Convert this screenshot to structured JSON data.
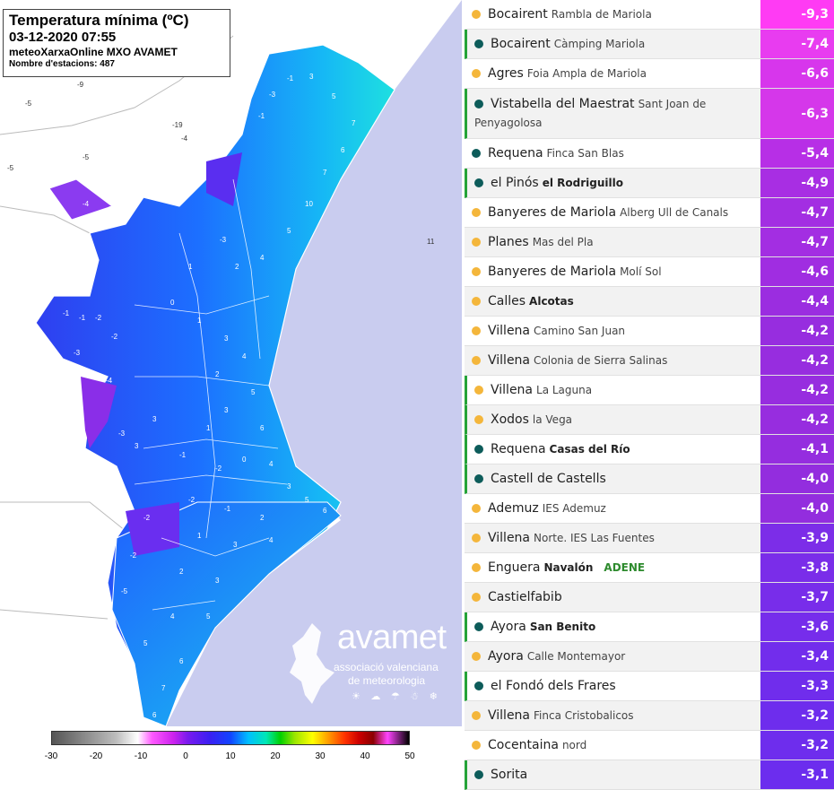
{
  "map": {
    "title": "Temperatura mínima (ºC)",
    "datetime": "03-12-2020 07:55",
    "source": "meteoXarxaOnline MXO AVAMET",
    "stations": "Nombre d'estacions: 487"
  },
  "logo": {
    "brand": "avamet",
    "line1": "associació valenciana",
    "line2": "de meteorologia",
    "weather_icons": "☀ ☁ ☂ ☃ ❄"
  },
  "scale": {
    "ticks": [
      "-30",
      "-20",
      "-10",
      "0",
      "10",
      "20",
      "30",
      "40",
      "50"
    ]
  },
  "stations": [
    {
      "town": "Bocairent",
      "site": "Rambla de Mariola",
      "site_bold": false,
      "value": "-9,3",
      "dot": "yellow",
      "mark": false,
      "color": "#ff3bf4"
    },
    {
      "town": "Bocairent",
      "site": "Càmping Mariola",
      "site_bold": false,
      "value": "-7,4",
      "dot": "teal",
      "mark": true,
      "color": "#e83cf0"
    },
    {
      "town": "Agres",
      "site": "Foia Ampla de Mariola",
      "site_bold": false,
      "value": "-6,6",
      "dot": "yellow",
      "mark": false,
      "color": "#d736ec"
    },
    {
      "town": "Vistabella del Maestrat",
      "site": "Sant Joan de Penyagolosa",
      "site_bold": false,
      "value": "-6,3",
      "dot": "teal",
      "mark": true,
      "color": "#d537ea"
    },
    {
      "town": "Requena",
      "site": "Finca San Blas",
      "site_bold": false,
      "value": "-5,4",
      "dot": "teal",
      "mark": false,
      "color": "#b72fe6"
    },
    {
      "town": "el Pinós",
      "site": "el Rodriguillo",
      "site_bold": true,
      "value": "-4,9",
      "dot": "teal",
      "mark": true,
      "color": "#a82ee3"
    },
    {
      "town": "Banyeres de Mariola",
      "site": "Alberg Ull de Canals",
      "site_bold": false,
      "value": "-4,7",
      "dot": "yellow",
      "mark": false,
      "color": "#a32ee2"
    },
    {
      "town": "Planes",
      "site": "Mas del Pla",
      "site_bold": false,
      "value": "-4,7",
      "dot": "yellow",
      "mark": false,
      "color": "#a32ee2"
    },
    {
      "town": "Banyeres de Mariola",
      "site": "Molí Sol",
      "site_bold": false,
      "value": "-4,6",
      "dot": "yellow",
      "mark": false,
      "color": "#a02de1"
    },
    {
      "town": "Calles",
      "site": "Alcotas",
      "site_bold": true,
      "value": "-4,4",
      "dot": "yellow",
      "mark": false,
      "color": "#9b2de0"
    },
    {
      "town": "Villena",
      "site": "Camino San Juan",
      "site_bold": false,
      "value": "-4,2",
      "dot": "yellow",
      "mark": false,
      "color": "#972ddf"
    },
    {
      "town": "Villena",
      "site": "Colonia de Sierra Salinas",
      "site_bold": false,
      "value": "-4,2",
      "dot": "yellow",
      "mark": false,
      "color": "#972ddf"
    },
    {
      "town": "Villena",
      "site": "La Laguna",
      "site_bold": false,
      "value": "-4,2",
      "dot": "yellow",
      "mark": true,
      "color": "#972ddf"
    },
    {
      "town": "Xodos",
      "site": "la Vega",
      "site_bold": false,
      "value": "-4,2",
      "dot": "yellow",
      "mark": true,
      "color": "#972ddf"
    },
    {
      "town": "Requena",
      "site": "Casas del Río",
      "site_bold": true,
      "value": "-4,1",
      "dot": "teal",
      "mark": true,
      "color": "#952ddf"
    },
    {
      "town": "Castell de Castells",
      "site": "",
      "site_bold": false,
      "value": "-4,0",
      "dot": "teal",
      "mark": true,
      "color": "#932dde"
    },
    {
      "town": "Ademuz",
      "site": "IES Ademuz",
      "site_bold": false,
      "value": "-4,0",
      "dot": "yellow",
      "mark": false,
      "color": "#932dde"
    },
    {
      "town": "Villena",
      "site": "Norte. IES Las Fuentes",
      "site_bold": false,
      "value": "-3,9",
      "dot": "yellow",
      "mark": false,
      "color": "#7c2de8"
    },
    {
      "town": "Enguera",
      "site": "Navalón",
      "site_bold": true,
      "extra": "ADENE",
      "value": "-3,8",
      "dot": "yellow",
      "mark": false,
      "color": "#7a2de9"
    },
    {
      "town": "Castielfabib",
      "site": "",
      "site_bold": false,
      "value": "-3,7",
      "dot": "yellow",
      "mark": false,
      "color": "#782dea"
    },
    {
      "town": "Ayora",
      "site": "San Benito",
      "site_bold": true,
      "value": "-3,6",
      "dot": "teal",
      "mark": true,
      "color": "#762deb"
    },
    {
      "town": "Ayora",
      "site": "Calle Montemayor",
      "site_bold": false,
      "value": "-3,4",
      "dot": "yellow",
      "mark": false,
      "color": "#722dec"
    },
    {
      "town": "el Fondó dels Frares",
      "site": "",
      "site_bold": false,
      "value": "-3,3",
      "dot": "teal",
      "mark": true,
      "color": "#702dec"
    },
    {
      "town": "Villena",
      "site": "Finca Cristobalicos",
      "site_bold": false,
      "value": "-3,2",
      "dot": "yellow",
      "mark": false,
      "color": "#6e2ded"
    },
    {
      "town": "Cocentaina",
      "site": "nord",
      "site_bold": false,
      "value": "-3,2",
      "dot": "yellow",
      "mark": false,
      "color": "#6e2ded"
    },
    {
      "town": "Sorita",
      "site": "",
      "site_bold": false,
      "value": "-3,1",
      "dot": "teal",
      "mark": true,
      "color": "#6c2dee"
    }
  ]
}
